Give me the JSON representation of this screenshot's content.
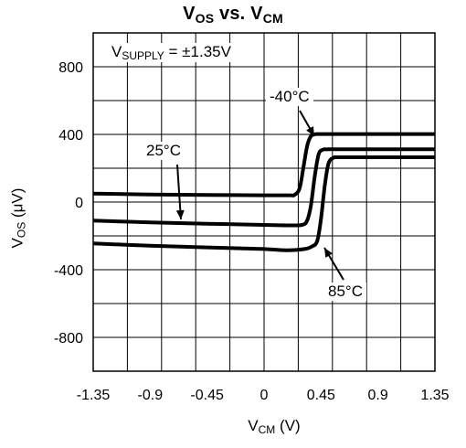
{
  "chart_data": {
    "type": "line",
    "title": {
      "main": "V",
      "sub1": "OS",
      "mid": " vs. V",
      "sub2": "CM"
    },
    "xlabel": {
      "main": "V",
      "sub": "CM",
      "unit": " (V)"
    },
    "ylabel": {
      "main": "V",
      "sub": "OS",
      "unit": " (μV)"
    },
    "xlim": [
      -1.35,
      1.35
    ],
    "ylim": [
      -1000,
      1000
    ],
    "x_ticks": [
      -1.35,
      -0.9,
      -0.45,
      0,
      0.45,
      0.9,
      1.35
    ],
    "x_tick_labels": [
      "-1.35",
      "-0.9",
      "-0.45",
      "0",
      "0.45",
      "0.9",
      "1.35"
    ],
    "y_ticks": [
      800,
      400,
      0,
      -400,
      -800
    ],
    "y_tick_labels": [
      "800",
      "400",
      "0",
      "-400",
      "-800"
    ],
    "grid": true,
    "annotation": {
      "main": "V",
      "sub": "SUPPLY",
      "rest": " = ±1.35V"
    },
    "series": [
      {
        "name": "-40°C",
        "x": [
          -1.35,
          -0.9,
          -0.45,
          0,
          0.2,
          0.24,
          0.28,
          0.31,
          0.34,
          0.37,
          0.4,
          0.43,
          0.6,
          0.9,
          1.35
        ],
        "y": [
          50,
          45,
          42,
          40,
          40,
          42,
          80,
          200,
          330,
          390,
          400,
          402,
          402,
          402,
          402
        ]
      },
      {
        "name": "25°C",
        "x": [
          -1.35,
          -0.9,
          -0.45,
          0,
          0.2,
          0.3,
          0.34,
          0.37,
          0.4,
          0.43,
          0.46,
          0.5,
          0.6,
          0.9,
          1.35
        ],
        "y": [
          -110,
          -120,
          -128,
          -135,
          -138,
          -135,
          -110,
          -20,
          150,
          280,
          308,
          312,
          312,
          312,
          312
        ]
      },
      {
        "name": "85°C",
        "x": [
          -1.35,
          -0.9,
          -0.45,
          0,
          0.18,
          0.32,
          0.38,
          0.42,
          0.45,
          0.48,
          0.51,
          0.55,
          0.6,
          0.9,
          1.35
        ],
        "y": [
          -245,
          -258,
          -268,
          -278,
          -285,
          -278,
          -262,
          -230,
          -100,
          100,
          230,
          262,
          265,
          265,
          265
        ]
      }
    ],
    "series_labels": [
      "-40°C",
      "25°C",
      "85°C"
    ]
  }
}
